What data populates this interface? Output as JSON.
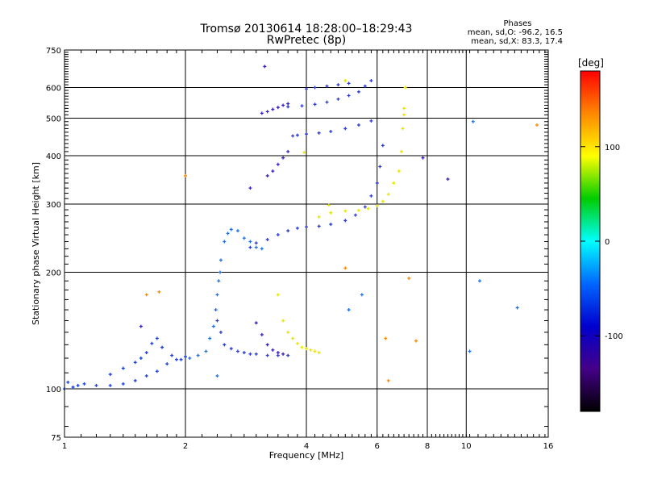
{
  "chart_data": {
    "type": "scatter",
    "title": "Tromsø 20130614 18:28:00–18:29:43",
    "subtitle": "RwPretec (8p)",
    "xlabel": "Frequency [MHz]",
    "ylabel": "Stationary phase Virtual Height [km]",
    "xscale": "log",
    "yscale": "log",
    "xlim": [
      1,
      16
    ],
    "ylim": [
      75,
      750
    ],
    "x_ticks": [
      1,
      2,
      4,
      6,
      8,
      10,
      16
    ],
    "y_ticks": [
      75,
      100,
      200,
      300,
      400,
      500,
      600,
      750
    ],
    "x_major_gridlines": [
      2,
      4,
      6,
      8,
      10
    ],
    "y_major_gridlines": [
      100,
      200,
      300,
      400,
      500,
      600
    ],
    "grid": true,
    "stats": {
      "title": "Phases",
      "line1": "mean, sd,O: -96.2, 16.5",
      "line2": "mean, sd,X:  83.3, 17.4"
    },
    "colorbar": {
      "label": "[deg]",
      "range": [
        -180,
        180
      ],
      "ticks": [
        100,
        0,
        -100
      ],
      "colors": [
        "#ff0000",
        "#ff8800",
        "#ffff00",
        "#00cc00",
        "#00ffff",
        "#0066ff",
        "#0000cc",
        "#440088",
        "#000000"
      ]
    },
    "series": [
      {
        "color": "#1a3fd9",
        "points": [
          [
            1.0,
            100
          ],
          [
            1.02,
            104
          ],
          [
            1.05,
            101
          ],
          [
            1.08,
            102
          ],
          [
            1.12,
            103
          ],
          [
            1.2,
            102
          ],
          [
            1.3,
            102
          ],
          [
            1.4,
            103
          ],
          [
            1.5,
            105
          ],
          [
            1.6,
            108
          ],
          [
            1.7,
            111
          ],
          [
            1.8,
            116
          ],
          [
            1.9,
            119
          ],
          [
            2.0,
            121
          ]
        ]
      },
      {
        "color": "#1a3fd9",
        "points": [
          [
            1.3,
            109
          ],
          [
            1.4,
            113
          ],
          [
            1.5,
            117
          ],
          [
            1.55,
            120
          ],
          [
            1.6,
            124
          ],
          [
            1.65,
            131
          ],
          [
            1.7,
            135
          ],
          [
            1.75,
            128
          ],
          [
            1.85,
            122
          ],
          [
            1.95,
            119
          ]
        ]
      },
      {
        "color": "#1e70e8",
        "points": [
          [
            2.05,
            120
          ],
          [
            2.15,
            122
          ],
          [
            2.25,
            125
          ],
          [
            2.3,
            135
          ],
          [
            2.35,
            145
          ],
          [
            2.38,
            160
          ],
          [
            2.4,
            175
          ],
          [
            2.42,
            190
          ],
          [
            2.44,
            200
          ],
          [
            2.45,
            215
          ],
          [
            2.5,
            240
          ],
          [
            2.55,
            252
          ],
          [
            2.6,
            258
          ],
          [
            2.7,
            256
          ],
          [
            2.8,
            245
          ],
          [
            2.9,
            240
          ],
          [
            3.0,
            232
          ],
          [
            3.1,
            230
          ]
        ]
      },
      {
        "color": "#2a3cc8",
        "points": [
          [
            2.4,
            150
          ],
          [
            2.45,
            140
          ],
          [
            2.5,
            130
          ],
          [
            2.6,
            127
          ],
          [
            2.7,
            125
          ],
          [
            2.8,
            124
          ],
          [
            2.9,
            123
          ],
          [
            3.0,
            123
          ],
          [
            3.2,
            122
          ],
          [
            3.4,
            122
          ],
          [
            3.6,
            122
          ]
        ]
      },
      {
        "color": "#3a1cc0",
        "points": [
          [
            3.0,
            148
          ],
          [
            3.1,
            138
          ],
          [
            3.2,
            130
          ],
          [
            3.3,
            126
          ],
          [
            3.4,
            124
          ],
          [
            3.5,
            123
          ]
        ]
      },
      {
        "color": "#e8e600",
        "points": [
          [
            3.4,
            175
          ],
          [
            3.5,
            150
          ],
          [
            3.6,
            140
          ],
          [
            3.7,
            135
          ],
          [
            3.8,
            131
          ],
          [
            3.9,
            128
          ],
          [
            4.0,
            127
          ],
          [
            4.1,
            126
          ],
          [
            4.2,
            125
          ],
          [
            4.3,
            124
          ]
        ]
      },
      {
        "color": "#2b3bd0",
        "points": [
          [
            2.9,
            232
          ],
          [
            3.0,
            238
          ],
          [
            3.2,
            243
          ],
          [
            3.4,
            250
          ],
          [
            3.6,
            256
          ],
          [
            3.8,
            260
          ],
          [
            4.0,
            262
          ],
          [
            4.3,
            263
          ],
          [
            4.6,
            266
          ],
          [
            5.0,
            272
          ],
          [
            5.3,
            281
          ],
          [
            5.6,
            295
          ],
          [
            5.8,
            315
          ],
          [
            6.0,
            340
          ],
          [
            6.1,
            375
          ],
          [
            6.2,
            425
          ]
        ]
      },
      {
        "color": "#e8e600",
        "points": [
          [
            4.3,
            278
          ],
          [
            4.6,
            285
          ],
          [
            5.0,
            288
          ],
          [
            5.4,
            289
          ],
          [
            5.7,
            292
          ],
          [
            6.0,
            297
          ],
          [
            6.2,
            305
          ],
          [
            6.4,
            318
          ],
          [
            6.6,
            340
          ],
          [
            6.8,
            365
          ],
          [
            6.9,
            410
          ],
          [
            6.95,
            470
          ],
          [
            7.0,
            530
          ],
          [
            7.05,
            600
          ]
        ]
      },
      {
        "color": "#3a20c0",
        "points": [
          [
            3.2,
            355
          ],
          [
            3.3,
            365
          ],
          [
            3.4,
            380
          ],
          [
            3.5,
            395
          ],
          [
            3.6,
            410
          ]
        ]
      },
      {
        "color": "#2b3bd0",
        "points": [
          [
            3.7,
            450
          ],
          [
            3.8,
            452
          ],
          [
            4.0,
            455
          ],
          [
            4.3,
            458
          ],
          [
            4.6,
            462
          ],
          [
            5.0,
            470
          ],
          [
            5.4,
            480
          ],
          [
            5.8,
            492
          ]
        ]
      },
      {
        "color": "#3a20c0",
        "points": [
          [
            3.1,
            515
          ],
          [
            3.2,
            520
          ],
          [
            3.3,
            527
          ],
          [
            3.4,
            533
          ],
          [
            3.5,
            540
          ],
          [
            3.6,
            545
          ]
        ]
      },
      {
        "color": "#2b3bd0",
        "points": [
          [
            3.6,
            535
          ],
          [
            3.9,
            538
          ],
          [
            4.2,
            543
          ],
          [
            4.5,
            550
          ],
          [
            4.8,
            560
          ],
          [
            5.1,
            572
          ],
          [
            5.4,
            585
          ],
          [
            5.6,
            605
          ],
          [
            5.8,
            625
          ]
        ]
      },
      {
        "color": "#2b3bd0",
        "points": [
          [
            4.0,
            595
          ],
          [
            4.2,
            600
          ],
          [
            4.5,
            605
          ],
          [
            4.8,
            610
          ],
          [
            5.1,
            615
          ]
        ]
      },
      {
        "color": "#e8e600",
        "points": [
          [
            3.95,
            408
          ],
          [
            4.55,
            298
          ],
          [
            5.0,
            625
          ],
          [
            7.0,
            510
          ]
        ]
      },
      {
        "color": "#ff8800",
        "points": [
          [
            1.6,
            175
          ],
          [
            1.72,
            178
          ],
          [
            2.0,
            355
          ],
          [
            5.0,
            205
          ],
          [
            6.3,
            135
          ],
          [
            7.2,
            193
          ],
          [
            7.5,
            133
          ],
          [
            15.0,
            480
          ],
          [
            6.4,
            105
          ]
        ]
      },
      {
        "color": "#3a20c0",
        "points": [
          [
            1.55,
            145
          ],
          [
            2.9,
            330
          ],
          [
            7.8,
            395
          ],
          [
            9.0,
            348
          ],
          [
            3.15,
            680
          ]
        ]
      },
      {
        "color": "#1e70e8",
        "points": [
          [
            2.4,
            108
          ],
          [
            5.1,
            160
          ],
          [
            5.5,
            175
          ],
          [
            10.4,
            490
          ],
          [
            13.4,
            162
          ],
          [
            10.8,
            190
          ],
          [
            10.2,
            125
          ]
        ]
      }
    ]
  }
}
